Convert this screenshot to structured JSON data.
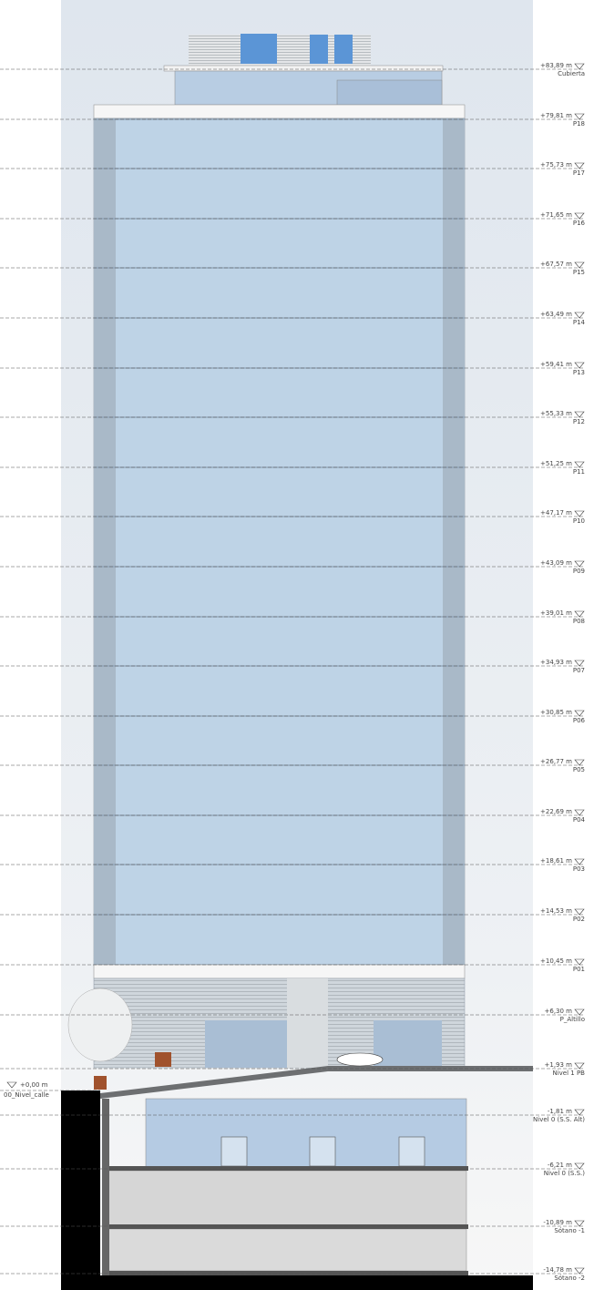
{
  "levels": [
    {
      "elevation": "+83,89 m",
      "name": "Cubierta"
    },
    {
      "elevation": "+79,81 m",
      "name": "P18"
    },
    {
      "elevation": "+75,73 m",
      "name": "P17"
    },
    {
      "elevation": "+71,65 m",
      "name": "P16"
    },
    {
      "elevation": "+67,57 m",
      "name": "P15"
    },
    {
      "elevation": "+63,49 m",
      "name": "P14"
    },
    {
      "elevation": "+59,41 m",
      "name": "P13"
    },
    {
      "elevation": "+55,33 m",
      "name": "P12"
    },
    {
      "elevation": "+51,25 m",
      "name": "P11"
    },
    {
      "elevation": "+47,17 m",
      "name": "P10"
    },
    {
      "elevation": "+43,09 m",
      "name": "P09"
    },
    {
      "elevation": "+39,01 m",
      "name": "P08"
    },
    {
      "elevation": "+34,93 m",
      "name": "P07"
    },
    {
      "elevation": "+30,85 m",
      "name": "P06"
    },
    {
      "elevation": "+26,77 m",
      "name": "P05"
    },
    {
      "elevation": "+22,69 m",
      "name": "P04"
    },
    {
      "elevation": "+18,61 m",
      "name": "P03"
    },
    {
      "elevation": "+14,53 m",
      "name": "P02"
    },
    {
      "elevation": "+10,45 m",
      "name": "P01"
    },
    {
      "elevation": "+6,30 m",
      "name": "P_Altillo"
    },
    {
      "elevation": "+1,93 m",
      "name": "Nivel 1 PB"
    },
    {
      "elevation": "-1,81 m",
      "name": "Nivel 0 (S.S. Alt)"
    },
    {
      "elevation": "-6,21 m",
      "name": "Nivel 0 (S.S.)"
    },
    {
      "elevation": "-10,89 m",
      "name": "Sótano -1"
    },
    {
      "elevation": "-14,78 m",
      "name": "Sótano -2"
    }
  ],
  "street_level": {
    "elevation": "+0,00 m",
    "name": "00_Nivel_calle"
  }
}
